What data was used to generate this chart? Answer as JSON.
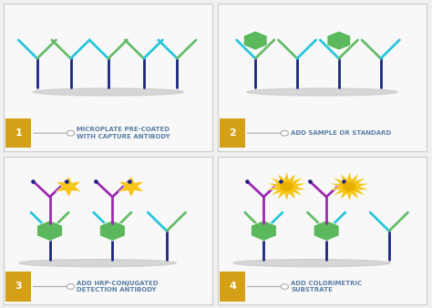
{
  "bg_color": "#f0f0f0",
  "panel_bg": "#f8f8f8",
  "step_color": "#d4a017",
  "step_numbers": [
    "1",
    "2",
    "3",
    "4"
  ],
  "step_labels": [
    "MICROPLATE PRE-COATED\nWITH CAPTURE ANTIBODY",
    "ADD SAMPLE OR STANDARD",
    "ADD HRP-CONJUGATED\nDETECTION ANTIBODY",
    "ADD COLORIMETRIC\nSUBSTRATE"
  ],
  "label_color": "#5b7fa6",
  "ab_stem_color": "#1a237e",
  "ab_arm1_color": "#26c6da",
  "ab_arm2_color": "#66bb6a",
  "antigen_color": "#5cb85c",
  "detection_ab_color": "#9c27b0",
  "star_color": "#f5c518",
  "sun_color": "#f5c518",
  "shadow_color": "#c8c8c8",
  "dot_color": "#1a237e"
}
